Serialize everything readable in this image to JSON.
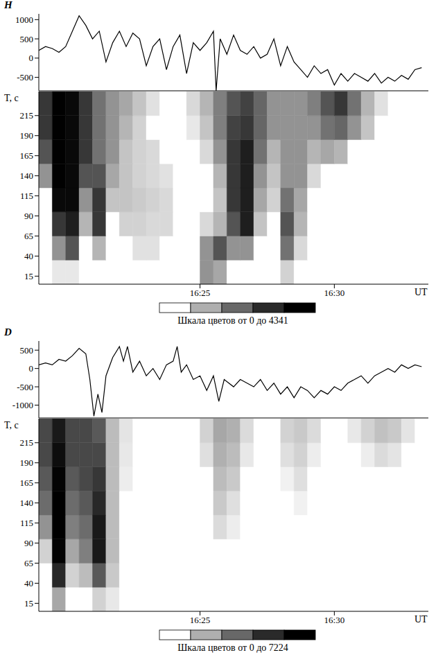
{
  "chart_data": [
    {
      "type": "line",
      "title": "H",
      "color": "#000000",
      "tick_labels": "y",
      "xlim": [
        19,
        33.5
      ],
      "ylim": [
        -850,
        1150
      ],
      "yticks": [
        -500,
        0,
        500,
        1000
      ],
      "x": [
        19,
        19.25,
        19.5,
        19.75,
        20,
        20.25,
        20.5,
        20.75,
        21,
        21.25,
        21.5,
        21.75,
        22,
        22.25,
        22.5,
        22.75,
        23,
        23.25,
        23.5,
        23.75,
        24,
        24.25,
        24.5,
        24.75,
        25,
        25.25,
        25.5,
        25.6,
        25.75,
        26,
        26.25,
        26.5,
        26.75,
        27,
        27.25,
        27.5,
        27.75,
        28,
        28.25,
        28.5,
        28.75,
        29,
        29.25,
        29.5,
        29.75,
        30,
        30.25,
        30.5,
        30.75,
        31,
        31.25,
        31.5,
        31.75,
        32,
        32.25,
        32.5,
        32.75,
        33,
        33.25
      ],
      "values": [
        200,
        300,
        250,
        150,
        300,
        700,
        1100,
        850,
        500,
        700,
        -100,
        400,
        700,
        300,
        650,
        500,
        -200,
        300,
        500,
        -300,
        300,
        600,
        -400,
        400,
        200,
        400,
        700,
        -850,
        500,
        100,
        600,
        200,
        100,
        300,
        0,
        100,
        500,
        -200,
        300,
        -100,
        -300,
        -500,
        -200,
        -400,
        -300,
        -700,
        -400,
        -600,
        -400,
        -500,
        -600,
        -400,
        -650,
        -500,
        -600,
        -450,
        -550,
        -300,
        -250
      ]
    },
    {
      "type": "heatmap",
      "xlabel": "UT",
      "ylabel": "T, с",
      "xlim": [
        19,
        33.5
      ],
      "ylim": [
        5,
        245
      ],
      "xticks": [
        {
          "value": 25,
          "label": "16:25"
        },
        {
          "value": 30,
          "label": "16:30"
        }
      ],
      "yticks": [
        15,
        40,
        65,
        90,
        115,
        140,
        165,
        190,
        215
      ],
      "time_bins": [
        19,
        19.5,
        20,
        20.5,
        21,
        21.5,
        22,
        22.5,
        23,
        23.5,
        24,
        24.5,
        25,
        25.5,
        26,
        26.5,
        27,
        27.5,
        28,
        28.5,
        29,
        29.5,
        30,
        30.5,
        31,
        31.5,
        32,
        32.5,
        33,
        33.5
      ],
      "period_bins": [
        5,
        35,
        65,
        95,
        125,
        155,
        185,
        215,
        245
      ],
      "cells": [
        [
          0,
          300,
          300,
          0,
          0,
          0,
          0,
          0,
          0,
          0,
          0,
          0,
          1500,
          1200,
          0,
          0,
          0,
          0,
          600,
          0,
          0,
          0,
          0,
          0,
          0,
          0,
          0,
          0,
          0
        ],
        [
          0,
          1500,
          2500,
          0,
          1000,
          0,
          0,
          400,
          400,
          0,
          0,
          0,
          1500,
          2500,
          1500,
          1500,
          0,
          0,
          2000,
          500,
          0,
          0,
          0,
          0,
          0,
          0,
          0,
          0,
          0
        ],
        [
          0,
          3000,
          3500,
          1000,
          3000,
          0,
          600,
          600,
          500,
          500,
          0,
          0,
          500,
          1000,
          2500,
          3500,
          800,
          0,
          2500,
          1000,
          0,
          0,
          0,
          0,
          0,
          0,
          0,
          0,
          0
        ],
        [
          0,
          4000,
          4000,
          1500,
          3000,
          800,
          800,
          700,
          600,
          500,
          0,
          0,
          0,
          800,
          3000,
          3500,
          1200,
          600,
          2000,
          1200,
          0,
          0,
          0,
          0,
          0,
          0,
          0,
          0,
          0
        ],
        [
          1500,
          4300,
          4000,
          2500,
          2500,
          1200,
          800,
          600,
          500,
          400,
          0,
          0,
          0,
          1000,
          3000,
          3500,
          1500,
          800,
          1500,
          1500,
          500,
          0,
          0,
          0,
          0,
          0,
          0,
          0,
          0
        ],
        [
          2500,
          4300,
          4000,
          3000,
          2000,
          1500,
          800,
          600,
          500,
          0,
          0,
          0,
          500,
          1500,
          3000,
          3500,
          2000,
          1000,
          1500,
          1500,
          1000,
          1200,
          1000,
          0,
          0,
          0,
          0,
          0,
          0
        ],
        [
          3000,
          4300,
          4000,
          3000,
          2000,
          1500,
          1000,
          600,
          0,
          0,
          0,
          300,
          800,
          1800,
          2800,
          3000,
          2200,
          1500,
          1500,
          1500,
          1500,
          2000,
          2200,
          1500,
          800,
          0,
          0,
          0,
          0
        ],
        [
          3000,
          4300,
          4000,
          3000,
          2000,
          1500,
          1200,
          800,
          400,
          0,
          0,
          500,
          1000,
          1800,
          2500,
          2800,
          2200,
          1500,
          1500,
          1500,
          1800,
          2500,
          3000,
          2000,
          1000,
          400,
          0,
          0,
          0
        ]
      ],
      "colorbar_range": [
        0,
        4341
      ],
      "colorbar_label": "Шкала цветов от 0 до 4341"
    },
    {
      "type": "line",
      "title": "D",
      "color": "#000000",
      "tick_labels": "y",
      "xlim": [
        19,
        33.5
      ],
      "ylim": [
        -1350,
        750
      ],
      "yticks": [
        -1000,
        -500,
        0,
        500
      ],
      "x": [
        19,
        19.25,
        19.5,
        19.75,
        20,
        20.25,
        20.5,
        20.75,
        20.9,
        21.05,
        21.2,
        21.35,
        21.5,
        21.75,
        22,
        22.15,
        22.3,
        22.5,
        22.75,
        23,
        23.25,
        23.5,
        23.75,
        24,
        24.15,
        24.3,
        24.5,
        24.75,
        25,
        25.25,
        25.5,
        25.7,
        25.9,
        26.25,
        26.5,
        26.75,
        27,
        27.25,
        27.5,
        27.75,
        28,
        28.25,
        28.5,
        28.75,
        29,
        29.25,
        29.5,
        29.75,
        30,
        30.25,
        30.5,
        30.75,
        31,
        31.25,
        31.5,
        31.75,
        32,
        32.25,
        32.5,
        32.75,
        33,
        33.25
      ],
      "values": [
        100,
        150,
        100,
        250,
        200,
        350,
        550,
        400,
        -300,
        -1300,
        -700,
        -1200,
        -200,
        300,
        600,
        200,
        600,
        -100,
        200,
        -200,
        0,
        -300,
        100,
        200,
        600,
        -100,
        100,
        -300,
        -200,
        -600,
        -200,
        -900,
        -300,
        -500,
        -300,
        -400,
        -500,
        -300,
        -600,
        -400,
        -700,
        -500,
        -800,
        -500,
        -600,
        -800,
        -600,
        -700,
        -500,
        -600,
        -400,
        -300,
        -200,
        -400,
        -200,
        -100,
        0,
        -100,
        100,
        0,
        100,
        50
      ]
    },
    {
      "type": "heatmap",
      "xlabel": "UT",
      "ylabel": "T, с",
      "xlim": [
        19,
        33.5
      ],
      "ylim": [
        5,
        245
      ],
      "xticks": [
        {
          "value": 25,
          "label": "16:25"
        },
        {
          "value": 30,
          "label": "16:30"
        }
      ],
      "yticks": [
        15,
        40,
        65,
        90,
        115,
        140,
        165,
        190,
        215
      ],
      "time_bins": [
        19,
        19.5,
        20,
        20.5,
        21,
        21.5,
        22,
        22.5,
        23,
        23.5,
        24,
        24.5,
        25,
        25.5,
        26,
        26.5,
        27,
        27.5,
        28,
        28.5,
        29,
        29.5,
        30,
        30.5,
        31,
        31.5,
        32,
        32.5,
        33,
        33.5
      ],
      "period_bins": [
        5,
        35,
        65,
        95,
        125,
        155,
        185,
        215,
        245
      ],
      "cells": [
        [
          0,
          2000,
          0,
          0,
          1000,
          500,
          0,
          0,
          0,
          0,
          0,
          0,
          0,
          0,
          0,
          0,
          0,
          0,
          0,
          0,
          0,
          0,
          0,
          0,
          0,
          0,
          0,
          0,
          0
        ],
        [
          0,
          5500,
          1000,
          1500,
          4000,
          1200,
          0,
          0,
          0,
          0,
          0,
          0,
          0,
          0,
          0,
          0,
          0,
          0,
          0,
          0,
          0,
          0,
          0,
          0,
          0,
          0,
          0,
          0,
          0
        ],
        [
          1000,
          7000,
          2000,
          3000,
          6000,
          1500,
          0,
          0,
          0,
          0,
          0,
          0,
          0,
          0,
          0,
          0,
          0,
          0,
          0,
          0,
          0,
          0,
          0,
          0,
          0,
          0,
          0,
          0,
          0
        ],
        [
          2500,
          7200,
          3000,
          3500,
          6000,
          1500,
          0,
          0,
          0,
          0,
          0,
          0,
          0,
          800,
          400,
          0,
          0,
          0,
          0,
          0,
          0,
          0,
          0,
          0,
          0,
          0,
          0,
          0,
          0
        ],
        [
          3500,
          7200,
          3500,
          4000,
          5500,
          1500,
          0,
          0,
          0,
          0,
          0,
          0,
          0,
          1200,
          700,
          0,
          0,
          0,
          0,
          300,
          0,
          0,
          0,
          0,
          0,
          0,
          0,
          0,
          0
        ],
        [
          4000,
          7000,
          4000,
          4500,
          5000,
          1500,
          400,
          0,
          0,
          0,
          0,
          0,
          0,
          1500,
          1200,
          0,
          0,
          0,
          300,
          700,
          0,
          0,
          0,
          0,
          0,
          0,
          0,
          0,
          0
        ],
        [
          4500,
          6500,
          4500,
          4500,
          4500,
          1500,
          500,
          0,
          0,
          0,
          0,
          0,
          700,
          1800,
          1500,
          500,
          0,
          0,
          700,
          1000,
          400,
          0,
          0,
          0,
          400,
          800,
          600,
          0,
          0
        ],
        [
          4500,
          6000,
          4500,
          4500,
          4000,
          1500,
          600,
          0,
          0,
          0,
          0,
          0,
          1000,
          2000,
          1800,
          800,
          0,
          0,
          1000,
          1200,
          800,
          0,
          0,
          500,
          1000,
          1400,
          1200,
          600,
          0
        ]
      ],
      "colorbar_range": [
        0,
        7224
      ],
      "colorbar_label": "Шкала цветов от 0 до 7224"
    }
  ]
}
